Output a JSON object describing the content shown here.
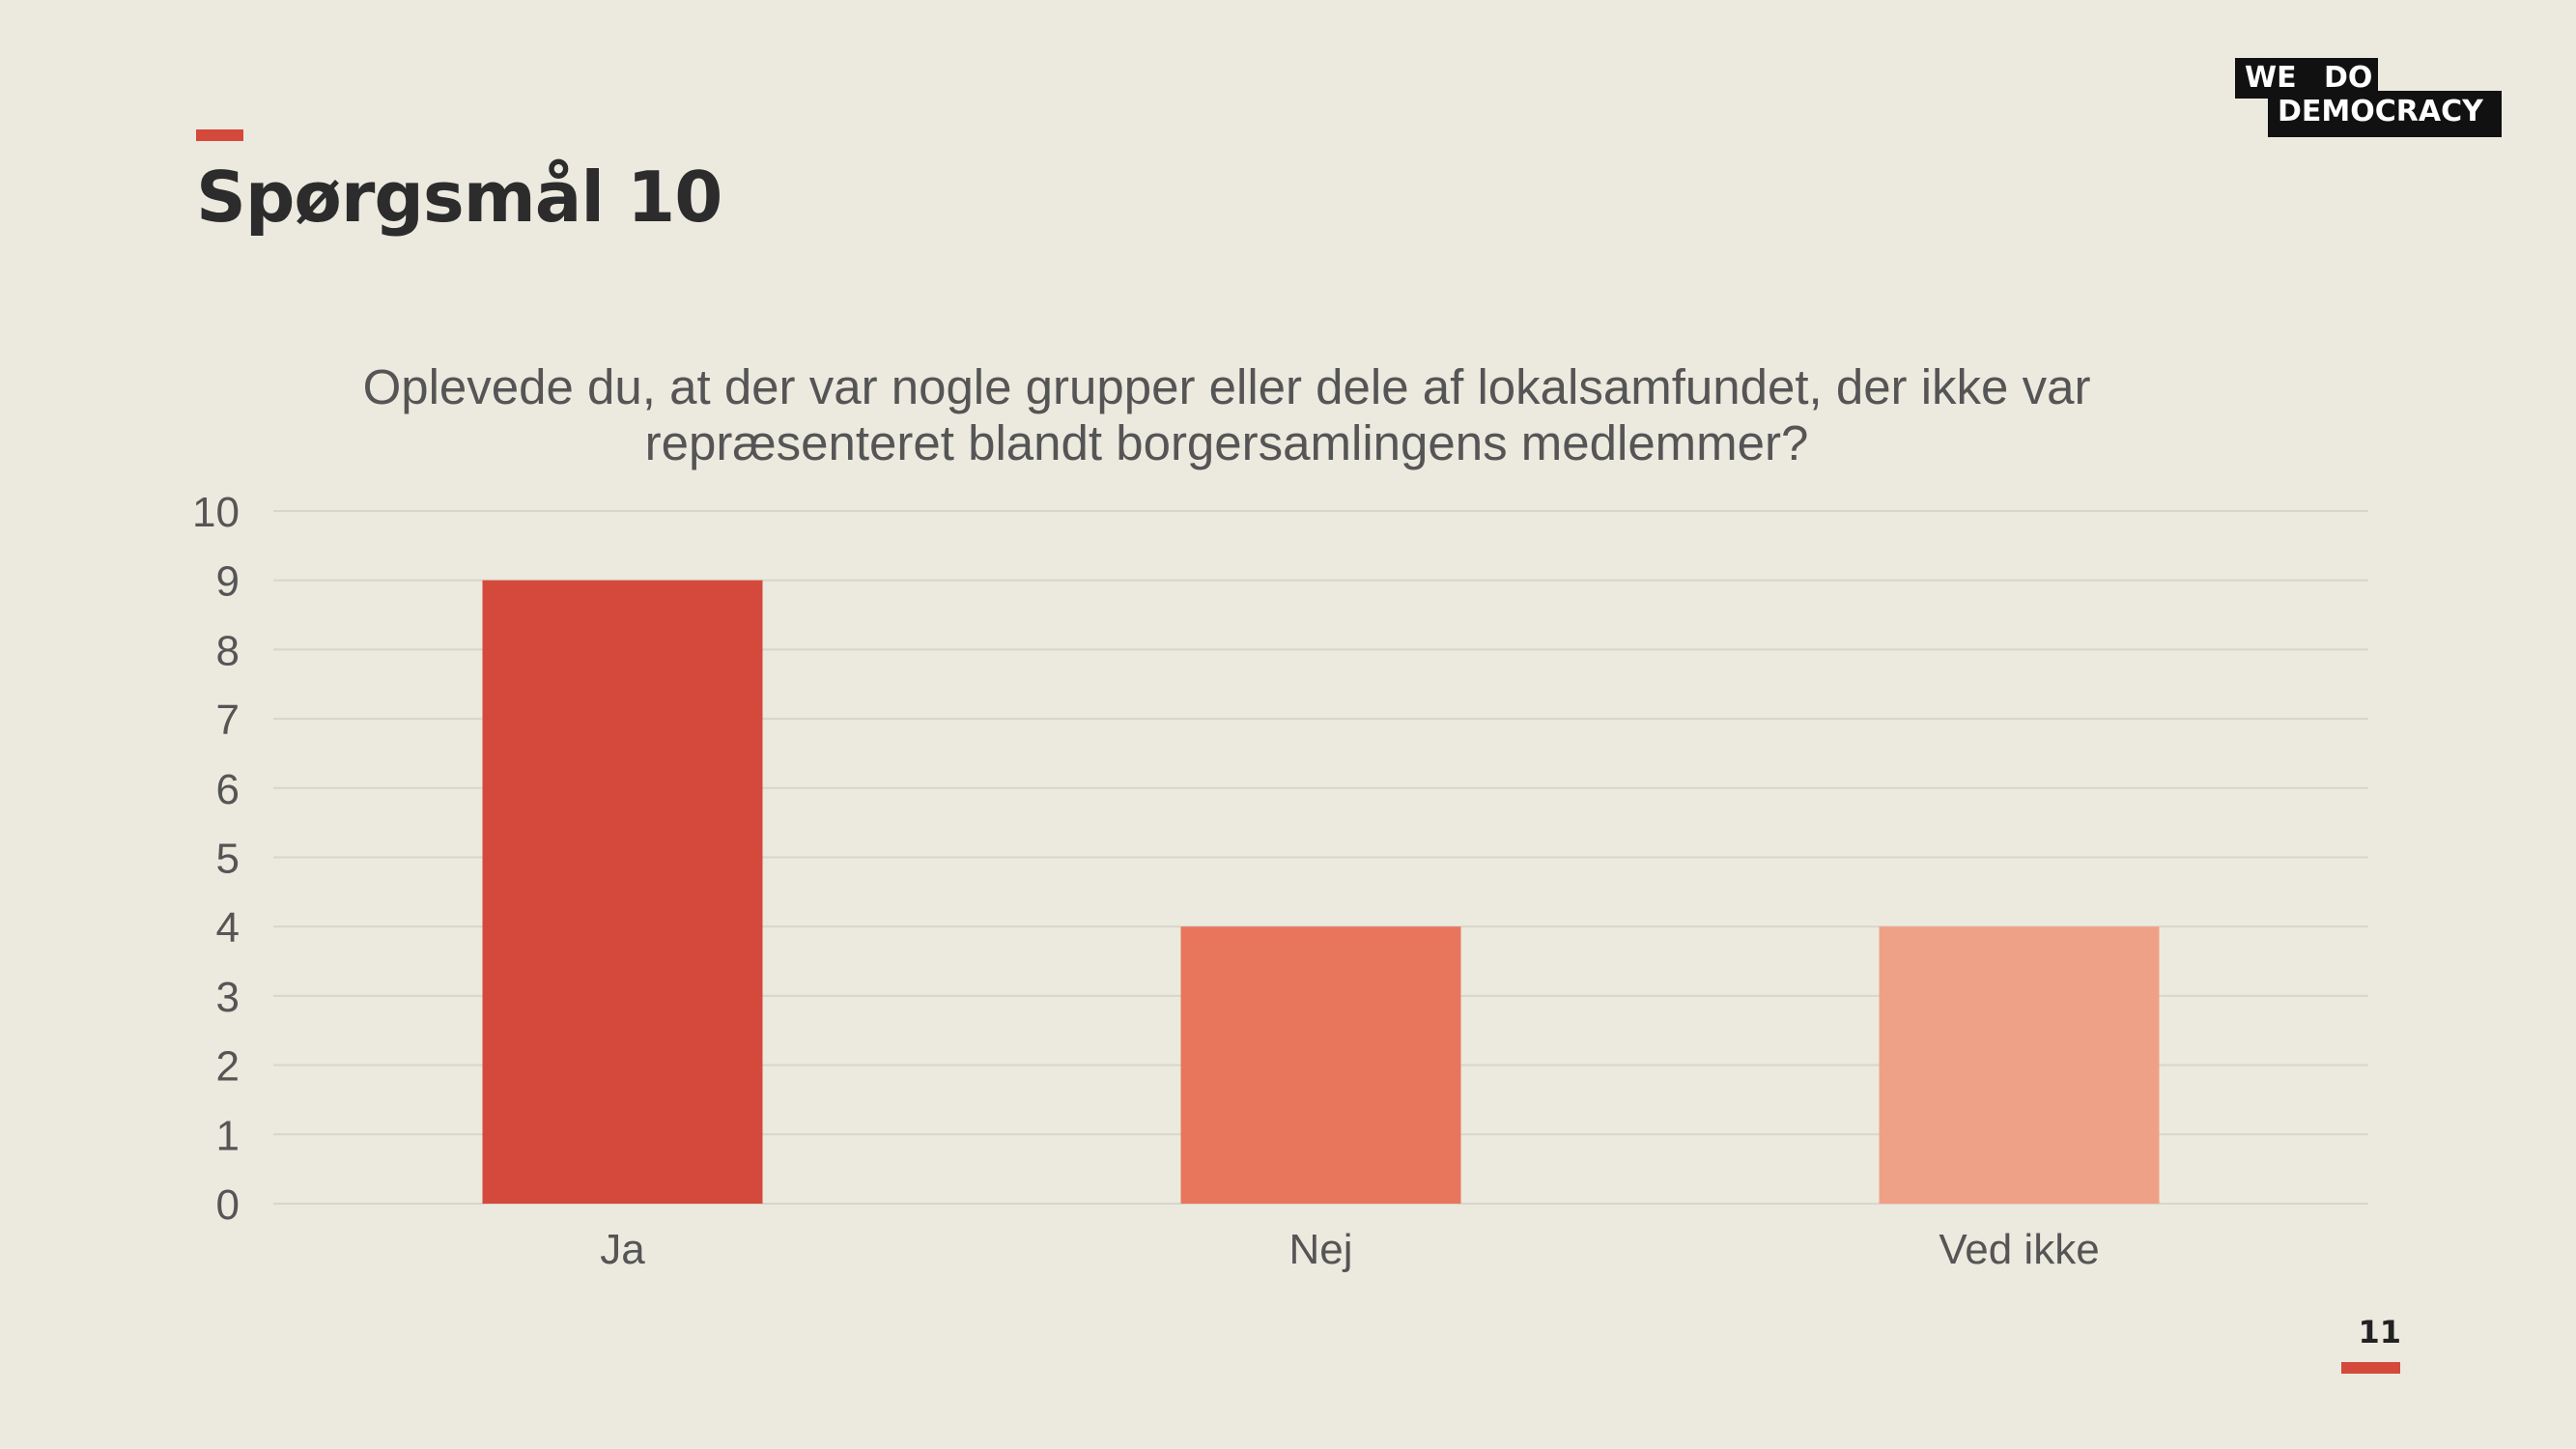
{
  "slide": {
    "title": "Spørgsmål 10",
    "page_number": "11",
    "logo_line1": "WE DO",
    "logo_line2": "DEMOCRACY"
  },
  "colors": {
    "accent": "#D4493C",
    "background": "#ECE9DF"
  },
  "chart_data": {
    "type": "bar",
    "title": "Oplevede du, at der var nogle grupper eller dele af lokalsamfundet, der ikke var repræsenteret blandt borgersamlingens medlemmer?",
    "categories": [
      "Ja",
      "Nej",
      "Ved ikke"
    ],
    "values": [
      9,
      4,
      4
    ],
    "bar_colors": [
      "#D4493C",
      "#E8765C",
      "#EFA187"
    ],
    "xlabel": "",
    "ylabel": "",
    "ylim": [
      0,
      10
    ],
    "yticks": [
      0,
      1,
      2,
      3,
      4,
      5,
      6,
      7,
      8,
      9,
      10
    ],
    "grid": true,
    "legend": "none"
  }
}
